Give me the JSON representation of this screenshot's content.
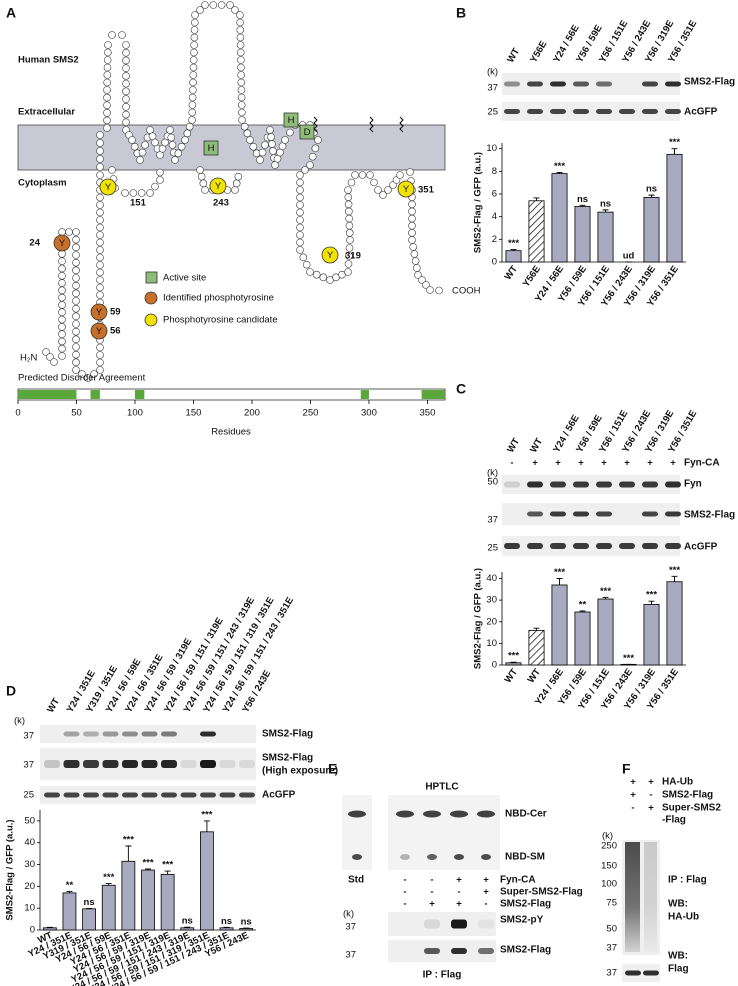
{
  "panel_a": {
    "letter": "A",
    "title": "Human SMS2",
    "extracellular": "Extracellular",
    "cytoplasm": "Cytoplasm",
    "residue_labels": [
      "24",
      "59",
      "56",
      "151",
      "243",
      "319",
      "351"
    ],
    "tyrosine": "Y",
    "histidine": "H",
    "aspartate": "D",
    "n_terminus": "H₂N",
    "c_terminus": "COOH",
    "legend": [
      "Active site",
      "Identified phosphotyrosine",
      "Phosphotyrosine candidate"
    ],
    "disorder": {
      "title": "Predicted Disorder Agreement",
      "xlabel": "Residues",
      "xlim": [
        0,
        365
      ],
      "xticks": [
        0,
        50,
        100,
        150,
        200,
        250,
        300,
        350
      ],
      "regions": [
        [
          0,
          50
        ],
        [
          62,
          70
        ],
        [
          100,
          108
        ],
        [
          293,
          300
        ],
        [
          345,
          365
        ]
      ],
      "color": "#5aa83c"
    }
  },
  "panel_b": {
    "letter": "B",
    "kilodalton": "(k)",
    "markers": [
      37,
      25
    ],
    "bands": [
      "SMS2-Flag",
      "AcGFP"
    ]
  },
  "panel_c": {
    "letter": "C",
    "kilodalton": "(k)",
    "treatment": "Fyn-CA",
    "signs": [
      "-",
      "+",
      "+",
      "+",
      "+",
      "+",
      "+",
      "+"
    ],
    "markers": [
      50,
      37,
      25
    ],
    "bands": [
      "Fyn",
      "SMS2-Flag",
      "AcGFP"
    ]
  },
  "panel_d": {
    "letter": "D",
    "kilodalton": "(k)",
    "markers": [
      37,
      37,
      25
    ],
    "bands": [
      "SMS2-Flag",
      "SMS2-Flag",
      "AcGFP"
    ],
    "band_note": "(High exposure)"
  },
  "panel_e": {
    "letter": "E",
    "method": "HPTLC",
    "lipids": [
      "NBD-Cer",
      "NBD-SM"
    ],
    "standard": "Std",
    "conditions": [
      {
        "label": "Fyn-CA",
        "signs": [
          "-",
          "-",
          "+",
          "+"
        ]
      },
      {
        "label": "Super-SMS2-Flag",
        "signs": [
          "-",
          "-",
          "-",
          "+"
        ]
      },
      {
        "label": "SMS2-Flag",
        "signs": [
          "-",
          "+",
          "+",
          "-"
        ]
      }
    ],
    "kilodalton": "(k)",
    "markers": [
      37,
      37
    ],
    "bands": [
      "SMS2-pY",
      "SMS2-Flag"
    ],
    "footer": "IP : Flag"
  },
  "panel_f": {
    "letter": "F",
    "conditions": [
      {
        "label": [
          "HA-Ub"
        ],
        "signs": [
          "+",
          "+"
        ]
      },
      {
        "label": [
          "SMS2-Flag"
        ],
        "signs": [
          "+",
          "-"
        ]
      },
      {
        "label": [
          "Super-SMS2",
          "-Flag"
        ],
        "signs": [
          "-",
          "+"
        ]
      }
    ],
    "kilodalton": "(k)",
    "markers": [
      250,
      150,
      100,
      75,
      50,
      37,
      37
    ],
    "ip": "IP : Flag",
    "wb_label": "WB:",
    "blots": [
      "HA-Ub",
      "Flag"
    ]
  },
  "chart_data": [
    {
      "type": "bar",
      "ylabel": "SMS2-Flag / GFP (a.u.)",
      "color": "#a8abbf",
      "hatched": [
        1
      ],
      "categories": [
        "WT",
        "Y56E",
        "Y24 / 56E",
        "Y56 / 59E",
        "Y56 / 151E",
        "Y56 / 243E",
        "Y56 / 319E",
        "Y56 / 351E"
      ],
      "values": [
        1.0,
        5.4,
        7.8,
        4.9,
        4.4,
        0,
        5.7,
        9.5
      ],
      "errors": [
        0.1,
        0.25,
        0.1,
        0.1,
        0.2,
        0,
        0.2,
        0.5
      ],
      "annotations": [
        "***",
        null,
        "***",
        "ns",
        "ns",
        "ud",
        "ns",
        "***"
      ],
      "ylim": [
        0,
        10.5
      ],
      "yticks": [
        0,
        2,
        4,
        6,
        8,
        10
      ]
    },
    {
      "type": "bar",
      "ylabel": "SMS2-Flag / GFP (a.u.)",
      "color": "#a8abbf",
      "hatched": [
        1
      ],
      "categories": [
        "WT",
        "WT",
        "Y24 / 56E",
        "Y56 / 59E",
        "Y56 / 151E",
        "Y56 / 243E",
        "Y56 / 319E",
        "Y56 / 351E"
      ],
      "values": [
        1,
        16,
        37,
        24.5,
        30.5,
        0.3,
        28,
        38.5
      ],
      "errors": [
        0.3,
        1,
        3,
        0.5,
        0.7,
        0,
        1.5,
        2.5
      ],
      "annotations": [
        "***",
        null,
        "***",
        "**",
        "***",
        "***",
        "***",
        "***"
      ],
      "ylim": [
        0,
        43
      ],
      "yticks": [
        0,
        10,
        20,
        30,
        40
      ]
    },
    {
      "type": "bar",
      "ylabel": "SMS2-Flag / GFP (a.u.)",
      "color": "#a8abbf",
      "hatched": [],
      "categories": [
        "WT",
        "Y24 / 351E",
        "Y319 / 351E",
        "Y24 / 56 / 59E",
        "Y24 / 56 / 351E",
        "Y24 / 56 / 59 / 319E",
        "Y24 / 56 / 59 / 151 / 319E",
        "Y24 / 56 / 59 / 151 / 243 / 319E",
        "Y24 / 56 / 59 / 151 / 319 / 351E",
        "Y24 / 56 / 59 / 151 / 243 / 351E",
        "Y56 / 243E"
      ],
      "values": [
        1,
        17,
        9.7,
        20.5,
        31.5,
        27.5,
        25.5,
        1,
        45,
        1,
        0.7
      ],
      "errors": [
        0.2,
        0.6,
        0.2,
        0.8,
        7,
        0.5,
        1.5,
        0.3,
        5,
        0.2,
        0.2
      ],
      "annotations": [
        null,
        "**",
        "ns",
        "***",
        "***",
        "***",
        "***",
        "ns",
        "***",
        "ns",
        "ns"
      ],
      "ylim": [
        0,
        55
      ],
      "yticks": [
        0,
        10,
        20,
        30,
        40,
        50
      ]
    }
  ]
}
